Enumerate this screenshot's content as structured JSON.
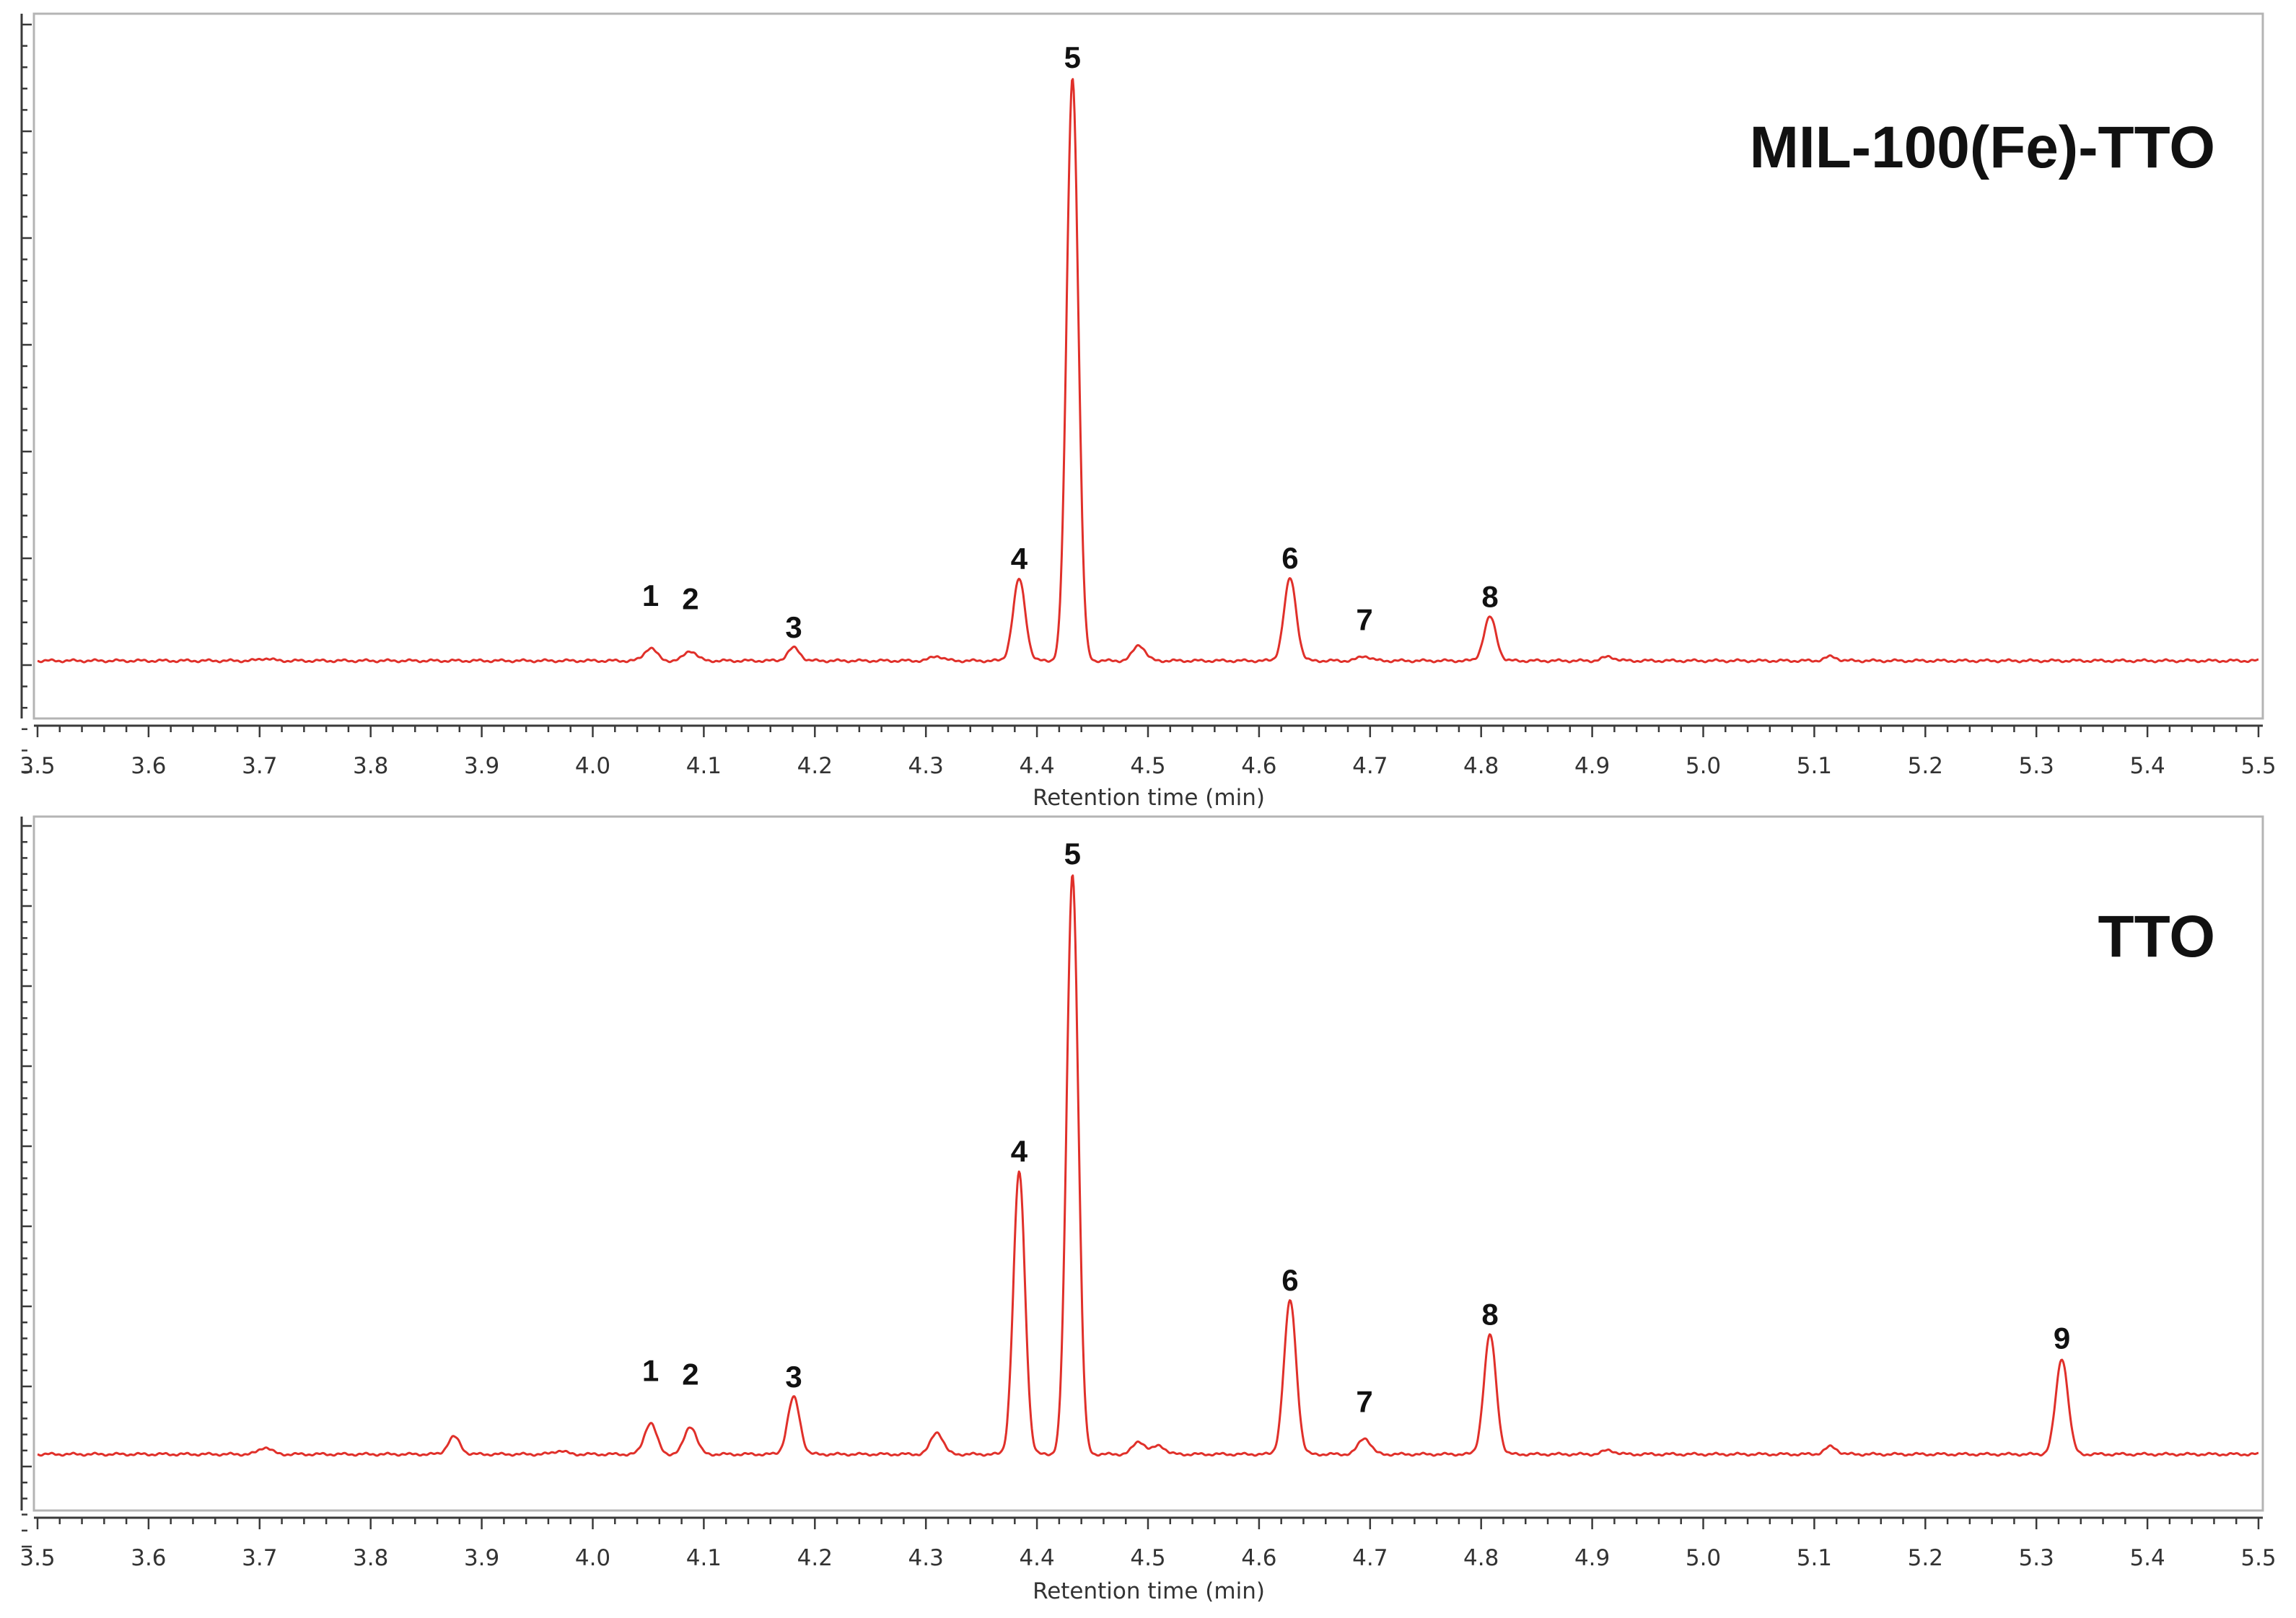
{
  "chart_data": [
    {
      "type": "line",
      "title": "MIL-100(Fe)-TTO",
      "xlabel": "Retention time (min)",
      "ylabel": "",
      "xlim": [
        3.5,
        5.5
      ],
      "ylim": [
        -0.1,
        1.1
      ],
      "xticks": [
        "3.5",
        "3.6",
        "3.7",
        "3.8",
        "3.9",
        "4.0",
        "4.1",
        "4.2",
        "4.3",
        "4.4",
        "4.5",
        "4.6",
        "4.7",
        "4.8",
        "4.9",
        "5.0",
        "5.1",
        "5.2",
        "5.3",
        "5.4",
        "5.5"
      ],
      "line_color": "#e0302a",
      "baseline": 0.0,
      "peaks": [
        {
          "label": "1",
          "x": 4.052,
          "height": 0.022
        },
        {
          "label": "2",
          "x": 4.088,
          "height": 0.017
        },
        {
          "label": "3",
          "x": 4.181,
          "height": 0.022
        },
        {
          "label": "4",
          "x": 4.384,
          "height": 0.14
        },
        {
          "label": "5",
          "x": 4.432,
          "height": 1.0
        },
        {
          "label": "6",
          "x": 4.628,
          "height": 0.141
        },
        {
          "label": "7",
          "x": 4.695,
          "height": 0.008
        },
        {
          "label": "8",
          "x": 4.808,
          "height": 0.075
        }
      ],
      "minor_peaks": [
        {
          "x": 3.705,
          "height": 0.004
        },
        {
          "x": 4.31,
          "height": 0.008
        },
        {
          "x": 4.492,
          "height": 0.027
        },
        {
          "x": 4.915,
          "height": 0.007
        },
        {
          "x": 5.115,
          "height": 0.007
        }
      ]
    },
    {
      "type": "line",
      "title": "TTO",
      "xlabel": "Retention time (min)",
      "ylabel": "",
      "xlim": [
        3.5,
        5.5
      ],
      "ylim": [
        -0.1,
        1.1
      ],
      "xticks": [
        "3.5",
        "3.6",
        "3.7",
        "3.8",
        "3.9",
        "4.0",
        "4.1",
        "4.2",
        "4.3",
        "4.4",
        "4.5",
        "4.6",
        "4.7",
        "4.8",
        "4.9",
        "5.0",
        "5.1",
        "5.2",
        "5.3",
        "5.4",
        "5.5"
      ],
      "line_color": "#e0302a",
      "baseline": 0.0,
      "peaks": [
        {
          "label": "1",
          "x": 4.052,
          "height": 0.054
        },
        {
          "label": "2",
          "x": 4.088,
          "height": 0.048
        },
        {
          "label": "3",
          "x": 4.181,
          "height": 0.098
        },
        {
          "label": "4",
          "x": 4.384,
          "height": 0.487
        },
        {
          "label": "5",
          "x": 4.432,
          "height": 1.0
        },
        {
          "label": "6",
          "x": 4.628,
          "height": 0.265
        },
        {
          "label": "7",
          "x": 4.695,
          "height": 0.028
        },
        {
          "label": "8",
          "x": 4.808,
          "height": 0.206
        },
        {
          "label": "9",
          "x": 5.323,
          "height": 0.165
        }
      ],
      "minor_peaks": [
        {
          "x": 3.705,
          "height": 0.012
        },
        {
          "x": 3.875,
          "height": 0.03
        },
        {
          "x": 3.97,
          "height": 0.006
        },
        {
          "x": 4.31,
          "height": 0.038
        },
        {
          "x": 4.492,
          "height": 0.022
        },
        {
          "x": 4.51,
          "height": 0.015
        },
        {
          "x": 4.915,
          "height": 0.007
        },
        {
          "x": 5.115,
          "height": 0.013
        }
      ]
    }
  ]
}
